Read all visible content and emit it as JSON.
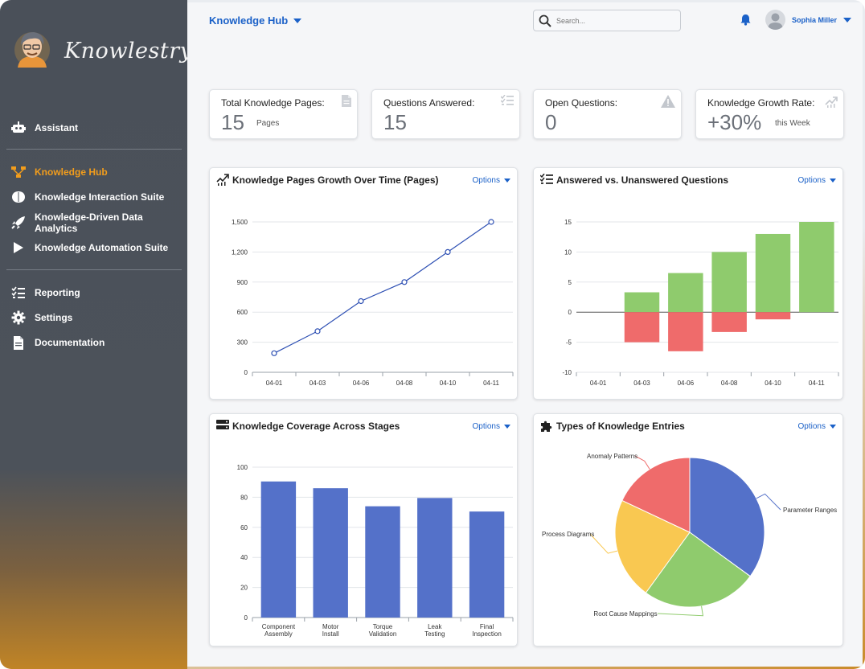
{
  "sidebar": {
    "logo_text": "Knowlestry",
    "items": [
      {
        "label": "Assistant",
        "icon": "robot-icon"
      },
      {
        "label": "Knowledge Hub",
        "icon": "hierarchy-icon",
        "active": true
      },
      {
        "label": "Knowledge Interaction Suite",
        "icon": "brain-icon"
      },
      {
        "label": "Knowledge-Driven Data Analytics",
        "icon": "rocket-icon"
      },
      {
        "label": "Knowledge Automation Suite",
        "icon": "play-icon"
      },
      {
        "label": "Reporting",
        "icon": "checklist-icon"
      },
      {
        "label": "Settings",
        "icon": "gear-icon"
      },
      {
        "label": "Documentation",
        "icon": "document-icon"
      }
    ]
  },
  "header": {
    "title": "Knowledge Hub",
    "search_placeholder": "Search...",
    "user_name": "Sophia Miller"
  },
  "kpis": [
    {
      "label": "Total Knowledge Pages:",
      "value": "15",
      "sub": "Pages",
      "icon": "document-icon"
    },
    {
      "label": "Questions Answered:",
      "value": "15",
      "sub": "",
      "icon": "checklist-icon"
    },
    {
      "label": "Open Questions:",
      "value": "0",
      "sub": "",
      "icon": "warning-icon"
    },
    {
      "label": "Knowledge Growth Rate:",
      "value": "+30%",
      "sub": "this Week",
      "icon": "growth-icon"
    }
  ],
  "options_label": "Options",
  "colors": {
    "accent": "#1b61c8",
    "active_nav": "#f29d1c",
    "line": "#2d4fb3",
    "bar": "#5471c9",
    "positive": "#8fcb6d",
    "negative": "#ef6b6b",
    "pie": [
      "#5471c9",
      "#8fcb6d",
      "#f9c851",
      "#ef6b6b"
    ]
  },
  "panels": {
    "growth": {
      "title": "Knowledge Pages Growth Over Time (Pages)",
      "icon": "growth-icon"
    },
    "answered": {
      "title": "Answered vs. Unanswered Questions",
      "icon": "checklist-icon"
    },
    "coverage": {
      "title": "Knowledge Coverage Across Stages",
      "icon": "server-icon"
    },
    "types": {
      "title": "Types of Knowledge Entries",
      "icon": "puzzle-icon"
    }
  },
  "chart_data": [
    {
      "type": "line",
      "x": [
        "04-01",
        "04-03",
        "04-06",
        "04-08",
        "04-10",
        "04-11"
      ],
      "series": [
        {
          "values": [
            190,
            410,
            710,
            900,
            1200,
            1500
          ]
        }
      ],
      "ylim": [
        0,
        1500
      ],
      "yticks": [
        0,
        300,
        600,
        900,
        1200,
        1500
      ],
      "ytick_labels": [
        "0",
        "300",
        "600",
        "900",
        "1,200",
        "1,500"
      ],
      "grid": true
    },
    {
      "type": "bar",
      "categories": [
        "04-01",
        "04-03",
        "04-06",
        "04-08",
        "04-10",
        "04-11"
      ],
      "series": [
        {
          "values": [
            0,
            3.3,
            6.5,
            10,
            13,
            15
          ]
        },
        {
          "values": [
            0,
            -5,
            -6.5,
            -3.3,
            -1.2,
            0
          ]
        }
      ],
      "ylim": [
        -10,
        15
      ],
      "yticks": [
        -10,
        -5,
        0,
        5,
        10,
        15
      ],
      "grid": true
    },
    {
      "type": "bar",
      "categories": [
        "Component Assembly",
        "Motor Install",
        "Torque Validation",
        "Leak Testing",
        "Final Inspection"
      ],
      "category_lines": [
        [
          "Component",
          "Assembly"
        ],
        [
          "Motor",
          "Install"
        ],
        [
          "Torque",
          "Validation"
        ],
        [
          "Leak",
          "Testing"
        ],
        [
          "Final",
          "Inspection"
        ]
      ],
      "values": [
        90.5,
        86,
        74,
        79.5,
        70.5
      ],
      "ylim": [
        0,
        100
      ],
      "yticks": [
        0,
        20,
        40,
        60,
        80,
        100
      ],
      "grid": true
    },
    {
      "type": "pie",
      "labels": [
        "Parameter Ranges",
        "Root Cause Mappings",
        "Process Diagrams",
        "Anomaly Patterns"
      ],
      "values": [
        35,
        25,
        22,
        18
      ]
    }
  ]
}
